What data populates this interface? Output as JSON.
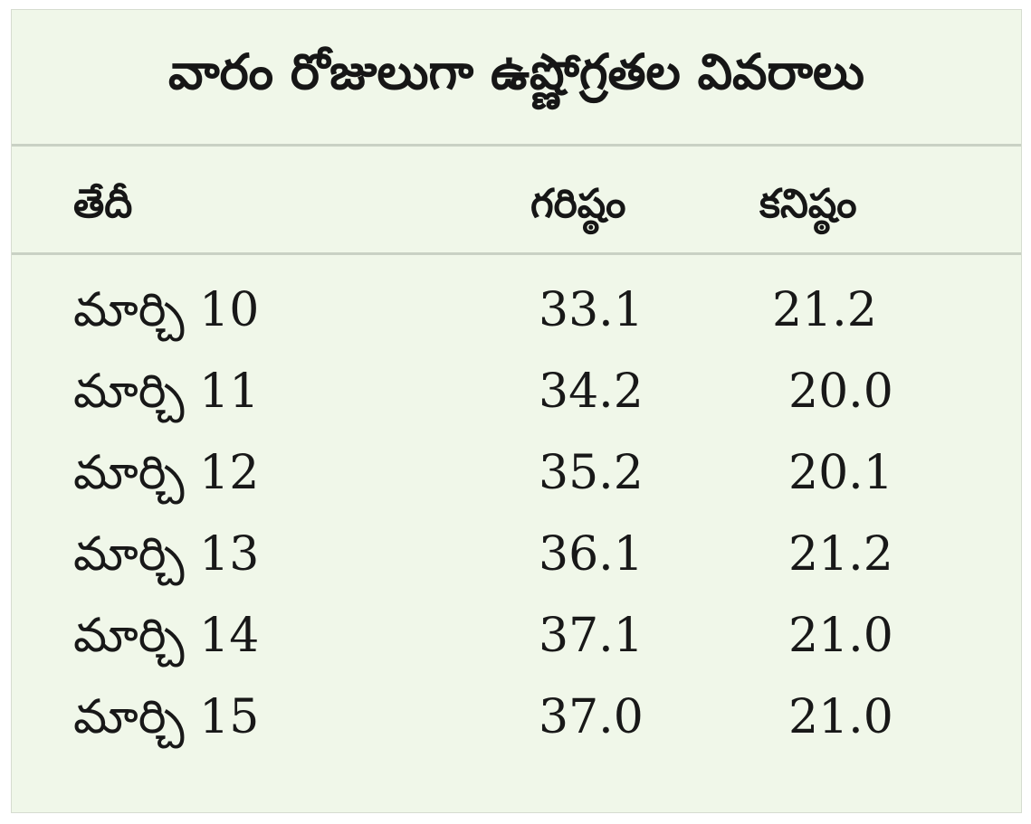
{
  "chart_data": {
    "type": "table",
    "title": "వారం రోజులుగా ఉష్ణోగ్రతల వివరాలు",
    "columns": [
      "తేదీ",
      "గరిష్ఠం",
      "కనిష్ఠం"
    ],
    "rows": [
      {
        "date": "మార్చి 10",
        "max": "33.1",
        "min": "21.2"
      },
      {
        "date": "మార్చి 11",
        "max": "34.2",
        "min": "20.0"
      },
      {
        "date": "మార్చి 12",
        "max": "35.2",
        "min": "20.1"
      },
      {
        "date": "మార్చి 13",
        "max": "36.1",
        "min": "21.2"
      },
      {
        "date": "మార్చి 14",
        "max": "37.1",
        "min": "21.0"
      },
      {
        "date": "మార్చి 15",
        "max": "37.0",
        "min": "21.0"
      }
    ]
  }
}
